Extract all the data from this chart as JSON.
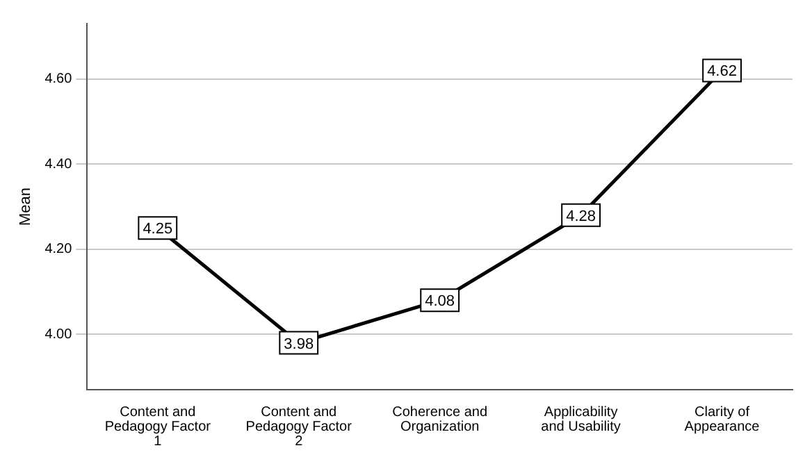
{
  "chart_data": {
    "type": "line",
    "ylabel": "Mean",
    "categories": [
      "Content and Pedagogy Factor 1",
      "Content and Pedagogy Factor 2",
      "Coherence and Organization",
      "Applicability and Usability",
      "Clarity of Appearance"
    ],
    "series": [
      {
        "color": "#000000",
        "values": [
          4.25,
          3.98,
          4.08,
          4.28,
          4.62
        ]
      }
    ],
    "ylim": [
      3.87,
      4.73
    ],
    "yticks": [
      {
        "value": 4,
        "label": "4.00"
      },
      {
        "value": 4.2,
        "label": "4.20"
      },
      {
        "value": 4.4,
        "label": "4.40"
      },
      {
        "value": 4.6,
        "label": "4.60"
      }
    ],
    "grid": "y",
    "legend": false,
    "marker": "square",
    "line_style": "solid",
    "data_labels": true
  }
}
